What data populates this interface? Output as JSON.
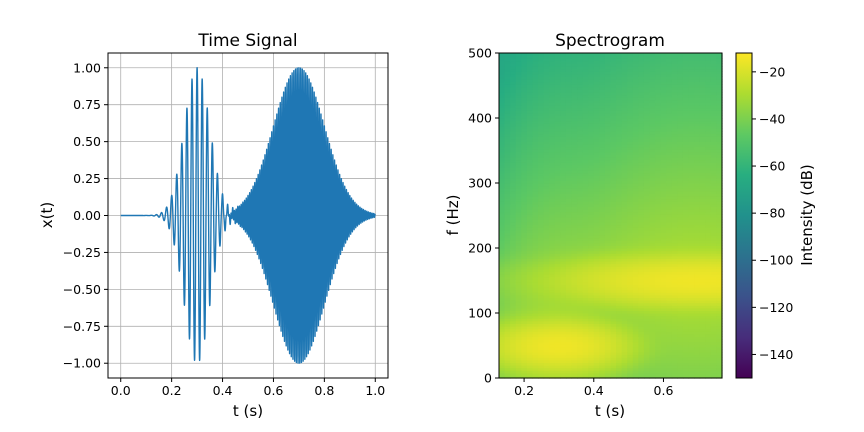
{
  "chart_data": [
    {
      "type": "line",
      "title": "Time Signal",
      "xlabel": "t (s)",
      "ylabel": "x(t)",
      "xlim": [
        -0.05,
        1.05
      ],
      "ylim": [
        -1.1,
        1.1
      ],
      "grid": true,
      "xticks": [
        0.0,
        0.2,
        0.4,
        0.6,
        0.8,
        1.0
      ],
      "xtick_labels": [
        "0.0",
        "0.2",
        "0.4",
        "0.6",
        "0.8",
        "1.0"
      ],
      "yticks": [
        1.0,
        0.75,
        0.5,
        0.25,
        0.0,
        -0.25,
        -0.5,
        -0.75,
        -1.0
      ],
      "ytick_labels": [
        "1.00",
        "0.75",
        "0.50",
        "0.25",
        "0.00",
        "−0.25",
        "−0.50",
        "−0.75",
        "−1.00"
      ],
      "series": [
        {
          "color": "#1f77b4",
          "t_range": [
            0.0,
            1.0
          ],
          "components": [
            {
              "envelope": "gaussian",
              "center": 0.3,
              "width_sigma": 0.05,
              "amplitude": 1.0,
              "frequency_hz": 50
            },
            {
              "envelope": "gaussian",
              "center": 0.7,
              "width_sigma": 0.1,
              "amplitude": 1.0,
              "frequency_hz": 150
            }
          ]
        }
      ]
    },
    {
      "type": "heatmap",
      "title": "Spectrogram",
      "xlabel": "t (s)",
      "ylabel": "f (Hz)",
      "xlim": [
        0.128,
        0.768
      ],
      "ylim": [
        0,
        500
      ],
      "xticks": [
        0.2,
        0.4,
        0.6
      ],
      "xtick_labels": [
        "0.2",
        "0.4",
        "0.6"
      ],
      "yticks": [
        0,
        100,
        200,
        300,
        400,
        500
      ],
      "ytick_labels": [
        "0",
        "100",
        "200",
        "300",
        "400",
        "500"
      ],
      "colormap": "viridis",
      "colorbar": {
        "label": "Intensity (dB)",
        "range": [
          -150,
          -12
        ],
        "ticks": [
          -20,
          -40,
          -60,
          -80,
          -100,
          -120,
          -140
        ],
        "tick_labels": [
          "−20",
          "−40",
          "−60",
          "−80",
          "−100",
          "−120",
          "−140"
        ]
      },
      "peaks": [
        {
          "t": 0.3,
          "f_hz": 50,
          "intensity_db": -15
        },
        {
          "t": 0.7,
          "f_hz": 150,
          "intensity_db": -15
        }
      ]
    }
  ]
}
